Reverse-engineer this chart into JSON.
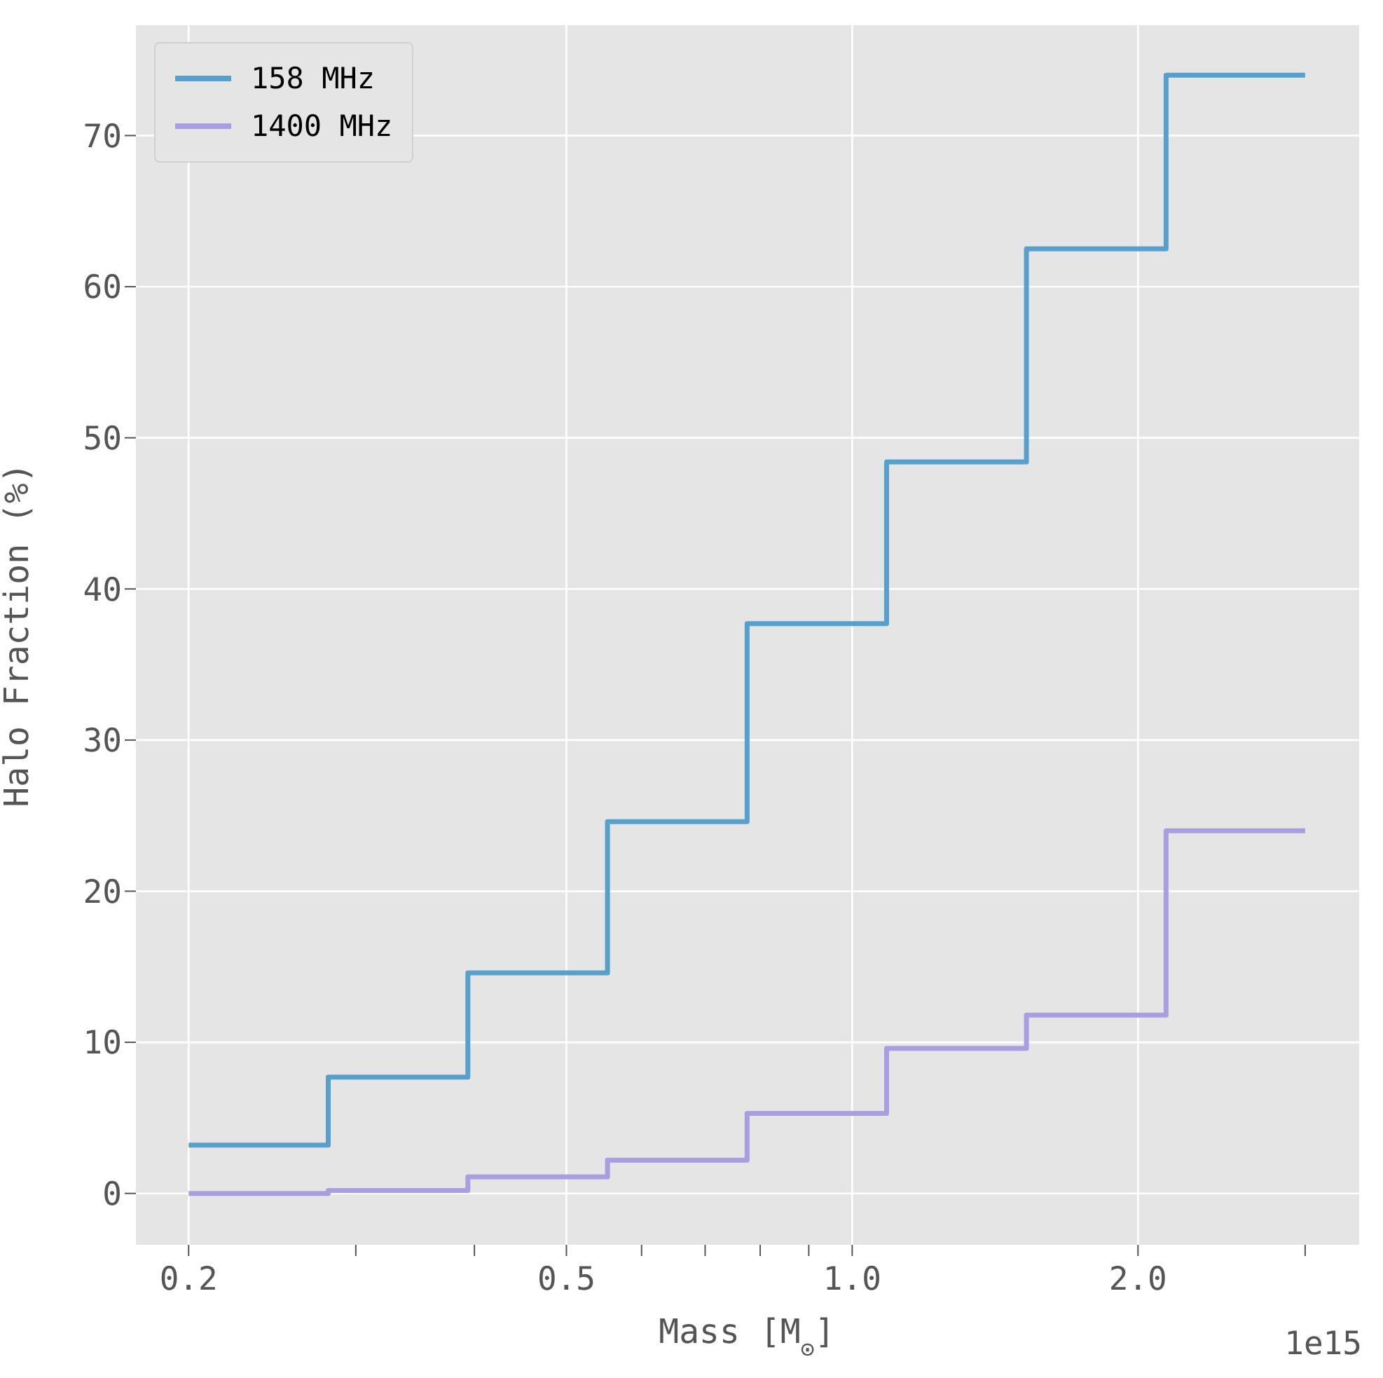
{
  "chart_data": {
    "type": "step",
    "xlabel": "Mass [M$_{⊙}$]",
    "ylabel": "Halo Fraction (%)",
    "annotations": [
      "1e15"
    ],
    "series": [
      {
        "name": "158 MHz",
        "color": "#57a0cc",
        "x": [
          0.2,
          0.2806,
          0.3937,
          0.5524,
          0.775,
          1.087,
          1.526,
          2.141,
          3.0
        ],
        "values": [
          3.2,
          7.7,
          14.6,
          24.6,
          37.7,
          48.4,
          62.5,
          74.0,
          74.0
        ]
      },
      {
        "name": "1400 MHz",
        "color": "#a89ee0",
        "x": [
          0.2,
          0.2806,
          0.3937,
          0.5524,
          0.775,
          1.087,
          1.526,
          2.141,
          3.0
        ],
        "values": [
          0,
          0.2,
          1.1,
          2.2,
          5.3,
          9.6,
          11.8,
          24.0,
          24.0
        ]
      }
    ],
    "log": "x",
    "xlim": [
      0.176,
      3.42
    ],
    "xticks": [
      {
        "value": 0.2,
        "label": "0.2"
      },
      {
        "value": 0.3,
        "label": null
      },
      {
        "value": 0.4,
        "label": null
      },
      {
        "value": 0.5,
        "label": "0.5"
      },
      {
        "value": 0.6,
        "label": null
      },
      {
        "value": 0.7,
        "label": null
      },
      {
        "value": 0.8,
        "label": null
      },
      {
        "value": 0.9,
        "label": null
      },
      {
        "value": 1.0,
        "label": "1.0"
      },
      {
        "value": 2.0,
        "label": "2.0"
      },
      {
        "value": 3.0,
        "label": null
      }
    ],
    "ylim": [
      -3.4,
      77.3
    ],
    "yticks": [
      0,
      10,
      20,
      30,
      40,
      50,
      60,
      70
    ],
    "grid": true,
    "legend": "top left",
    "marker": "none",
    "line_style": "solid"
  }
}
